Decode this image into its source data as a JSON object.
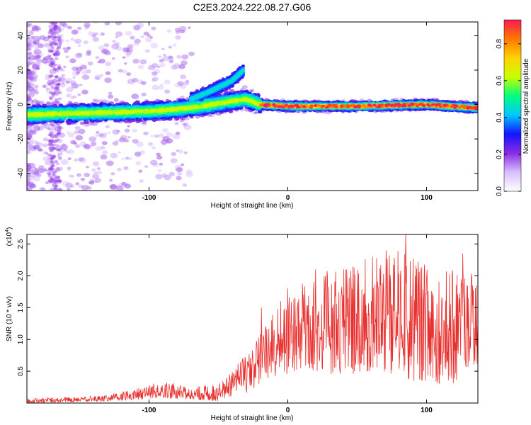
{
  "figure": {
    "title": "C2E3.2024.222.08.27.G06"
  },
  "chart_data": [
    {
      "type": "heatmap",
      "title": "",
      "xlabel": "Height of straight line (km)",
      "ylabel": "Frequency (Hz)",
      "xlim": [
        -188,
        137
      ],
      "ylim": [
        -50,
        48
      ],
      "xticks": [
        -100,
        0,
        100
      ],
      "yticks": [
        -40,
        -20,
        0,
        20,
        40
      ],
      "grid": false,
      "colorbar": {
        "label": "Normalized spectral amplitude",
        "range": [
          0,
          0.93
        ],
        "ticks": [
          "0.0",
          "0.2",
          "0.4",
          "0.6",
          "0.8"
        ],
        "tick_values": [
          0.0,
          0.2,
          0.4,
          0.6,
          0.8
        ],
        "colormap": [
          "#ffffff",
          "#d8bfff",
          "#8a2be2",
          "#1414ff",
          "#00c8ff",
          "#00ff80",
          "#c8ff00",
          "#ffd200",
          "#ff7800",
          "#ff1a50"
        ]
      },
      "features": [
        {
          "name": "frequency ridge",
          "x": [
            -188,
            -150,
            -100,
            -70,
            -40,
            -30,
            -20,
            0,
            50,
            100,
            137
          ],
          "y": [
            -6,
            -5,
            -4,
            -2,
            2,
            3,
            0,
            -1,
            -1,
            0,
            -2
          ]
        },
        {
          "name": "rising branch",
          "x": [
            -70,
            -55,
            -40,
            -32
          ],
          "y": [
            3,
            8,
            14,
            20
          ]
        }
      ]
    },
    {
      "type": "line",
      "title": "",
      "xlabel": "Height of straight line (km)",
      "ylabel": "SNR (10 * v/v)",
      "yscale_label": "(x10",
      "yscale_exp": "4",
      "yscale_close": ")",
      "xlim": [
        -188,
        137
      ],
      "ylim": [
        0,
        2.65
      ],
      "xticks": [
        -100,
        0,
        100
      ],
      "yticks": [
        0.5,
        1.0,
        1.5,
        2.0,
        2.5
      ],
      "ytick_labels": [
        "0.5",
        "1.0",
        "1.5",
        "2.0",
        "2.5"
      ],
      "grid": false,
      "series": [
        {
          "name": "",
          "color": "#e8302e",
          "envelope_x": [
            -188,
            -150,
            -130,
            -110,
            -90,
            -70,
            -50,
            -40,
            -30,
            -20,
            -10,
            0,
            10,
            20,
            30,
            40,
            50,
            60,
            70,
            80,
            90,
            100,
            110,
            120,
            130,
            137
          ],
          "envelope_high": [
            0.07,
            0.1,
            0.12,
            0.22,
            0.35,
            0.25,
            0.3,
            0.5,
            0.8,
            1.1,
            1.5,
            1.7,
            1.9,
            2.0,
            2.1,
            2.2,
            2.2,
            2.3,
            2.4,
            2.4,
            2.3,
            2.2,
            2.1,
            2.1,
            2.2,
            2.0
          ],
          "envelope_low": [
            0.0,
            0.02,
            0.03,
            0.05,
            0.08,
            0.05,
            0.03,
            0.1,
            0.15,
            0.3,
            0.4,
            0.45,
            0.5,
            0.5,
            0.45,
            0.45,
            0.45,
            0.5,
            0.45,
            0.4,
            0.35,
            0.35,
            0.3,
            0.3,
            0.5,
            0.6
          ],
          "peak_x": [
            -19,
            -5,
            0,
            20,
            33,
            85,
            126
          ],
          "peak_y": [
            1.5,
            1.6,
            1.8,
            2.1,
            1.55,
            2.65,
            2.35
          ]
        }
      ]
    }
  ]
}
